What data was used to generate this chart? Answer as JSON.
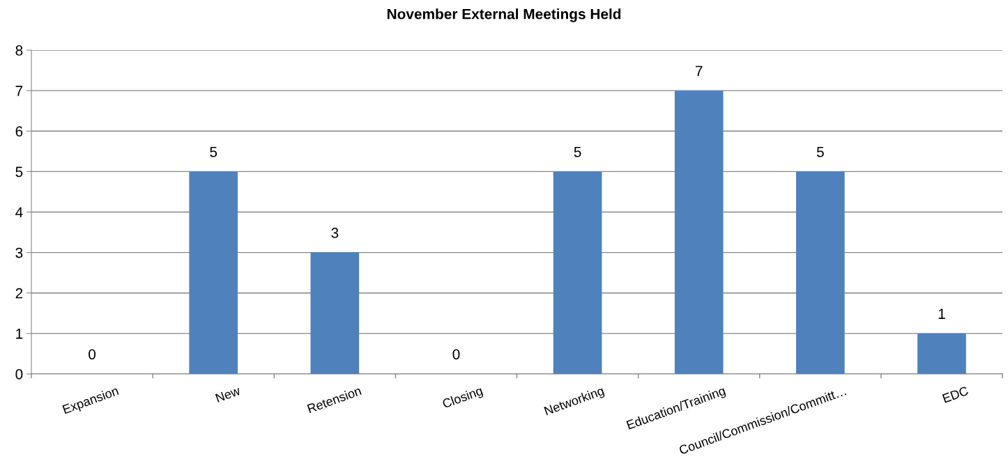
{
  "chart_data": {
    "type": "bar",
    "title": "November External Meetings Held",
    "categories": [
      "Expansion",
      "New",
      "Retension",
      "Closing",
      "Networking",
      "Education/Training",
      "Council/Commission/Committ…",
      "EDC"
    ],
    "values": [
      0,
      5,
      3,
      0,
      5,
      7,
      5,
      1
    ],
    "color": "#4f81bd",
    "ylim": [
      0,
      8
    ],
    "yticks": [
      0,
      1,
      2,
      3,
      4,
      5,
      6,
      7,
      8
    ],
    "grid": "y",
    "data_labels": true
  }
}
